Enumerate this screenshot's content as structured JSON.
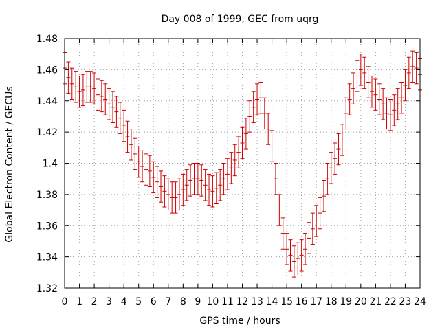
{
  "chart_data": {
    "type": "scatter",
    "title": "Day 008 of 1999, GEC from uqrg",
    "xlabel": "GPS time / hours",
    "ylabel": "Global Electron Content / GECUs",
    "xlim": [
      0,
      24
    ],
    "ylim": [
      1.32,
      1.48
    ],
    "x_ticks": [
      0,
      1,
      2,
      3,
      4,
      5,
      6,
      7,
      8,
      9,
      10,
      11,
      12,
      13,
      14,
      15,
      16,
      17,
      18,
      19,
      20,
      21,
      22,
      23,
      24
    ],
    "x_tick_labels": [
      "0",
      "1",
      "2",
      "3",
      "4",
      "5",
      "6",
      "7",
      "8",
      "9",
      "10",
      "11",
      "12",
      "13",
      "14",
      "15",
      "16",
      "17",
      "18",
      "19",
      "20",
      "21",
      "22",
      "23",
      "24"
    ],
    "y_ticks": [
      1.32,
      1.34,
      1.36,
      1.38,
      1.4,
      1.42,
      1.44,
      1.46,
      1.48
    ],
    "y_tick_labels": [
      "1.32",
      "1.34",
      "1.36",
      "1.38",
      "1.4",
      "1.42",
      "1.44",
      "1.46",
      "1.48"
    ],
    "grid": true,
    "error": 0.01,
    "series": [
      {
        "name": "GEC",
        "color": "#cc0000",
        "x": [
          0.0,
          0.25,
          0.5,
          0.75,
          1.0,
          1.25,
          1.5,
          1.75,
          2.0,
          2.25,
          2.5,
          2.75,
          3.0,
          3.25,
          3.5,
          3.75,
          4.0,
          4.25,
          4.5,
          4.75,
          5.0,
          5.25,
          5.5,
          5.75,
          6.0,
          6.25,
          6.5,
          6.75,
          7.0,
          7.25,
          7.5,
          7.75,
          8.0,
          8.25,
          8.5,
          8.75,
          9.0,
          9.25,
          9.5,
          9.75,
          10.0,
          10.25,
          10.5,
          10.75,
          11.0,
          11.25,
          11.5,
          11.75,
          12.0,
          12.25,
          12.5,
          12.75,
          13.0,
          13.25,
          13.5,
          13.75,
          14.0,
          14.25,
          14.5,
          14.75,
          15.0,
          15.25,
          15.5,
          15.75,
          16.0,
          16.25,
          16.5,
          16.75,
          17.0,
          17.25,
          17.5,
          17.75,
          18.0,
          18.25,
          18.5,
          18.75,
          19.0,
          19.25,
          19.5,
          19.75,
          20.0,
          20.25,
          20.5,
          20.75,
          21.0,
          21.25,
          21.5,
          21.75,
          22.0,
          22.25,
          22.5,
          22.75,
          23.0,
          23.25,
          23.5,
          23.75,
          24.0
        ],
        "y": [
          1.461,
          1.455,
          1.451,
          1.449,
          1.446,
          1.447,
          1.449,
          1.449,
          1.448,
          1.444,
          1.443,
          1.441,
          1.438,
          1.436,
          1.433,
          1.429,
          1.424,
          1.417,
          1.412,
          1.406,
          1.401,
          1.398,
          1.396,
          1.395,
          1.391,
          1.388,
          1.385,
          1.382,
          1.38,
          1.378,
          1.378,
          1.38,
          1.383,
          1.386,
          1.389,
          1.39,
          1.39,
          1.389,
          1.386,
          1.383,
          1.382,
          1.384,
          1.386,
          1.39,
          1.393,
          1.397,
          1.402,
          1.407,
          1.413,
          1.419,
          1.43,
          1.436,
          1.441,
          1.442,
          1.432,
          1.422,
          1.411,
          1.39,
          1.37,
          1.355,
          1.345,
          1.341,
          1.337,
          1.339,
          1.341,
          1.345,
          1.352,
          1.358,
          1.363,
          1.368,
          1.379,
          1.39,
          1.397,
          1.403,
          1.409,
          1.415,
          1.432,
          1.441,
          1.448,
          1.456,
          1.46,
          1.458,
          1.452,
          1.446,
          1.444,
          1.441,
          1.438,
          1.432,
          1.431,
          1.434,
          1.438,
          1.442,
          1.45,
          1.458,
          1.462,
          1.461,
          1.457
        ]
      }
    ]
  }
}
